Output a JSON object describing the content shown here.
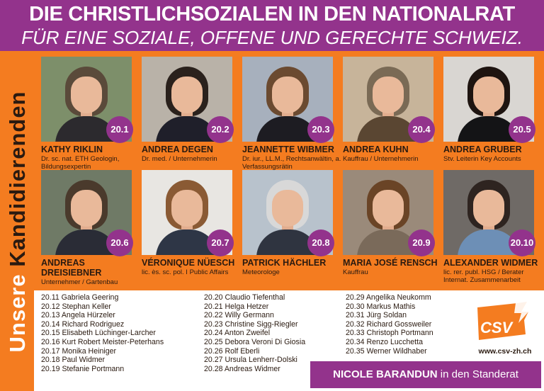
{
  "header": {
    "title": "DIE CHRISTLICHSOZIALEN IN DEN NATIONALRAT",
    "subtitle": "FÜR EINE SOZIALE, OFFENE UND GERECHTE SCHWEIZ."
  },
  "vertical_label": {
    "word1": "Unsere",
    "word2": "Kandidierenden"
  },
  "candidates": [
    {
      "number": "20.1",
      "name": "KATHY RIKLIN",
      "desc": "Dr. sc. nat. ETH Geologin, Bildungsexpertin",
      "bg": "#7d8f6a",
      "hair": "#5a4a3a",
      "body": "#2c2a2e"
    },
    {
      "number": "20.2",
      "name": "ANDREA DEGEN",
      "desc": "Dr. med. / Unternehmerin",
      "bg": "#b9b2a8",
      "hair": "#2a211c",
      "body": "#1f1f2a"
    },
    {
      "number": "20.3",
      "name": "JEANNETTE WIBMER",
      "desc": "Dr. iur., LL.M., Rechtsanwältin, a. Verfassungsrätin",
      "bg": "#a7b0bd",
      "hair": "#6b4a30",
      "body": "#1d1c22"
    },
    {
      "number": "20.4",
      "name": "ANDREA KUHN",
      "desc": "Kauffrau / Unternehmerin",
      "bg": "#c7b49a",
      "hair": "#7a6a55",
      "body": "#5a4632"
    },
    {
      "number": "20.5",
      "name": "ANDREA GRUBER",
      "desc": "Stv. Leiterin Key Accounts",
      "bg": "#d9d6d2",
      "hair": "#1e1410",
      "body": "#141416"
    },
    {
      "number": "20.6",
      "name": "ANDREAS DREISIEBNER",
      "desc": "Unternehmer / Gartenbau",
      "bg": "#6f7a66",
      "hair": "#4a3a2c",
      "body": "#2a2c36"
    },
    {
      "number": "20.7",
      "name": "VÉRONIQUE NÜESCH",
      "desc": "lic. ès. sc. pol. I Public Affairs",
      "bg": "#e8e6e2",
      "hair": "#8a5a34",
      "body": "#2e3646"
    },
    {
      "number": "20.8",
      "name": "PATRICK HÄCHLER",
      "desc": "Meteorologe",
      "bg": "#b8c2cc",
      "hair": "#d8d8d8",
      "body": "#2f3440"
    },
    {
      "number": "20.9",
      "name": "MARIA JOSÉ RENSCH",
      "desc": "Kauffrau",
      "bg": "#9a8a7a",
      "hair": "#6a4426",
      "body": "#7a6a5a"
    },
    {
      "number": "20.10",
      "name": "ALEXANDER WIDMER",
      "desc": "lic. rer. publ. HSG / Berater Internat. Zusammenarbeit",
      "bg": "#6f6a66",
      "hair": "#2e2420",
      "body": "#6d8fb6"
    }
  ],
  "list_columns": [
    [
      "20.11  Gabriela Geering",
      "20.12  Stephan Keller",
      "20.13  Angela Hürzeler",
      "20.14  Richard Rodriguez",
      "20.15  Elisabeth Lüchinger-Larcher",
      "20.16  Kurt Robert Meister-Peterhans",
      "20.17  Monika Heiniger",
      "20.18  Paul Widmer",
      "20.19  Stefanie Portmann"
    ],
    [
      "20.20  Claudio Tiefenthal",
      "20.21  Helga Hetzer",
      "20.22  Willy Germann",
      "20.23  Christine Sigg-Riegler",
      "20.24  Anton Zweifel",
      "20.25  Debora Veroni Di Giosia",
      "20.26  Rolf Eberli",
      "20.27  Ursula Lenherr-Dolski",
      "20.28  Andreas Widmer"
    ],
    [
      "20.29  Angelika Neukomm",
      "20.30  Markus Mathis",
      "20.31  Jürg Soldan",
      "20.32  Richard Gossweiler",
      "20.33  Christoph Portmann",
      "20.34  Renzo Lucchetta",
      "20.35  Werner Wildhaber"
    ]
  ],
  "logo": {
    "text": "CSV",
    "color": "#f47c20"
  },
  "url": "www.csv-zh.ch",
  "standerat": {
    "name": "NICOLE BARANDUN",
    "rest": " in den Standerat"
  },
  "colors": {
    "orange": "#f47c20",
    "purple": "#93338c"
  }
}
